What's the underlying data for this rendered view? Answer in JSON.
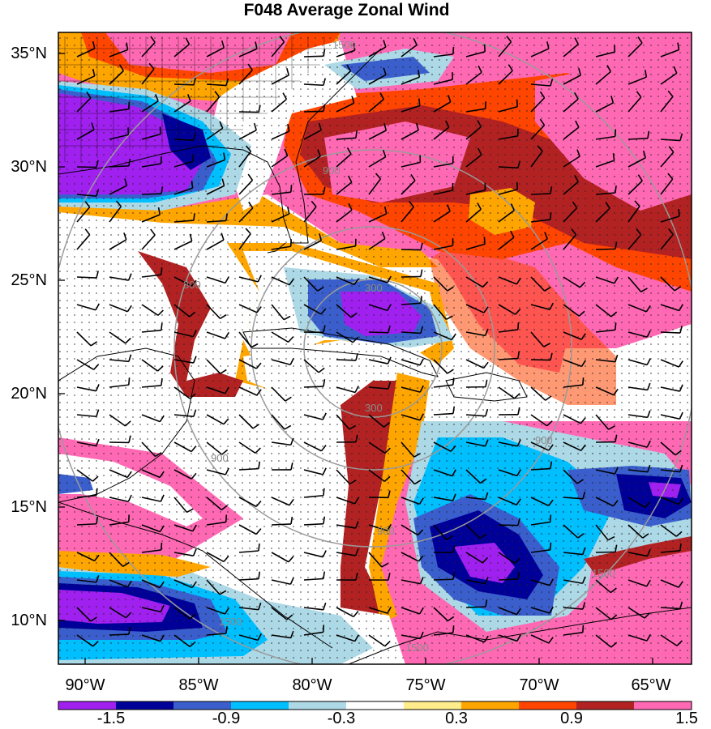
{
  "title": "F048 Average Zonal Wind",
  "lat_labels": [
    "35°N",
    "30°N",
    "25°N",
    "20°N",
    "15°N",
    "10°N"
  ],
  "lon_labels": [
    "90°W",
    "85°W",
    "80°W",
    "75°W",
    "70°W",
    "65°W"
  ],
  "contour_labels": [
    "300",
    "900",
    "1500",
    "900",
    "1500",
    "1500",
    "900",
    "300",
    "300",
    "900",
    "1500"
  ],
  "colorbar": {
    "colors": [
      "#a020f0",
      "#000099",
      "#3a5fcd",
      "#00bfff",
      "#add8e6",
      "#ffffff",
      "#ffec8b",
      "#ffa500",
      "#ff4500",
      "#b22222",
      "#ff69b4"
    ],
    "labels": [
      "-1.5",
      "-0.9",
      "-0.3",
      "0.3",
      "0.9",
      "1.5"
    ]
  }
}
